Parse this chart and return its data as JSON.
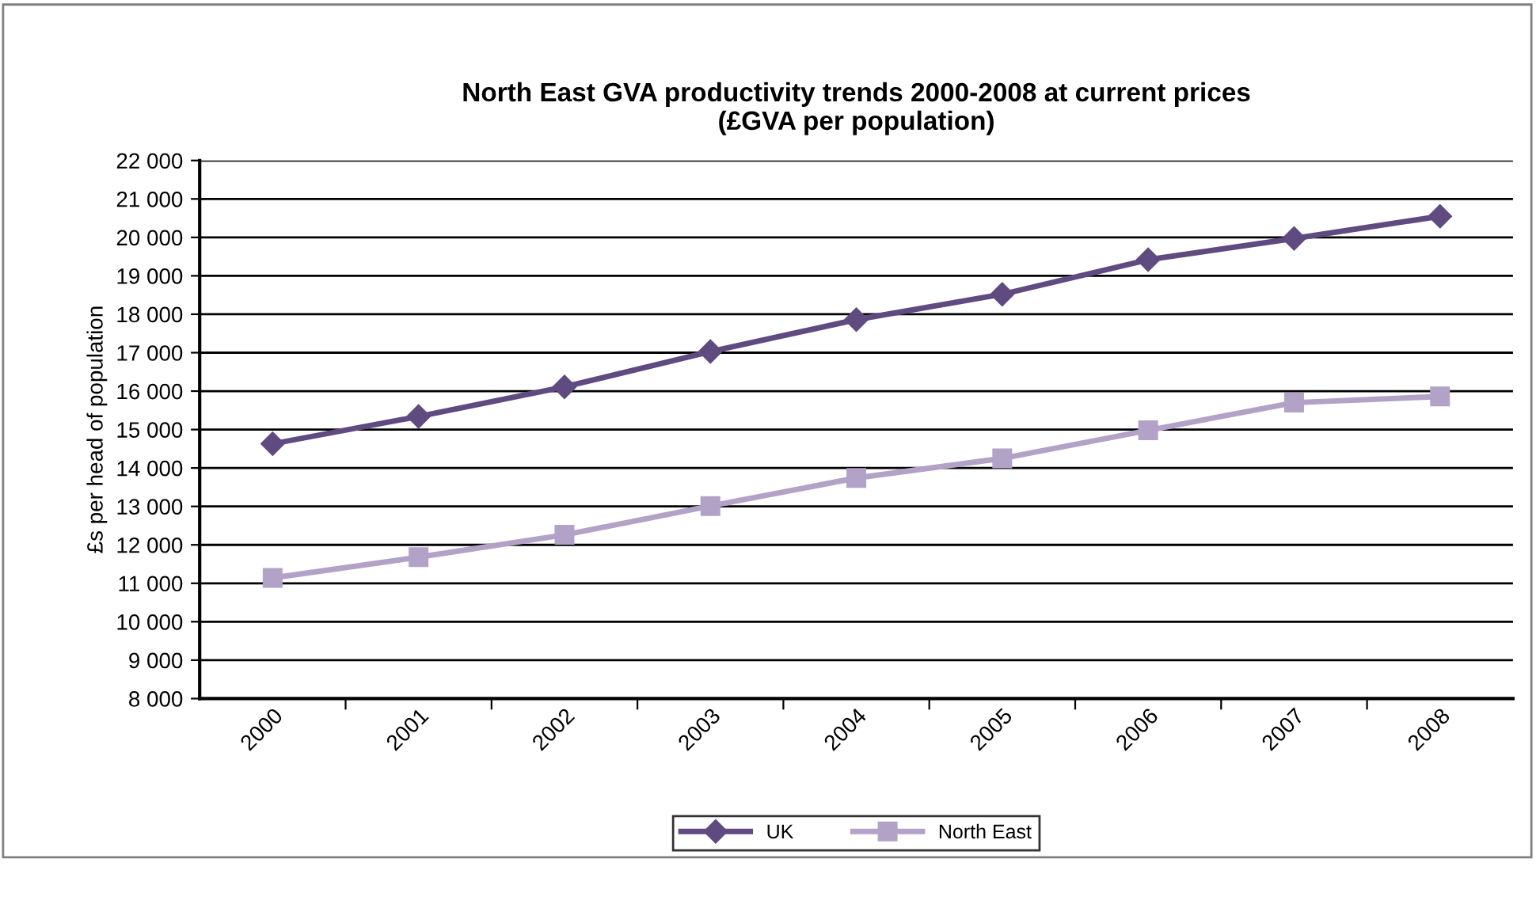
{
  "chart_data": {
    "type": "line",
    "title": "North East GVA productivity trends 2000-2008 at current prices\n(£GVA per population)",
    "ylabel": "£s per head of population",
    "categories": [
      "2000",
      "2001",
      "2002",
      "2003",
      "2004",
      "2005",
      "2006",
      "2007",
      "2008"
    ],
    "series": [
      {
        "name": "UK",
        "color": "#5f4b7f",
        "marker": "diamond",
        "values": [
          14630,
          15340,
          16110,
          17030,
          17860,
          18520,
          19420,
          19970,
          20550
        ]
      },
      {
        "name": "North East",
        "color": "#b3a2c7",
        "marker": "square",
        "values": [
          11140,
          11680,
          12260,
          13010,
          13740,
          14250,
          14980,
          15700,
          15860
        ]
      }
    ],
    "ylim": [
      8000,
      22000
    ],
    "yticks": [
      {
        "value": 8000,
        "label": "8 000"
      },
      {
        "value": 9000,
        "label": "9 000"
      },
      {
        "value": 10000,
        "label": "10 000"
      },
      {
        "value": 11000,
        "label": "11 000"
      },
      {
        "value": 12000,
        "label": "12 000"
      },
      {
        "value": 13000,
        "label": "13 000"
      },
      {
        "value": 14000,
        "label": "14 000"
      },
      {
        "value": 15000,
        "label": "15 000"
      },
      {
        "value": 16000,
        "label": "16 000"
      },
      {
        "value": 17000,
        "label": "17 000"
      },
      {
        "value": 18000,
        "label": "18 000"
      },
      {
        "value": 19000,
        "label": "19 000"
      },
      {
        "value": 20000,
        "label": "20 000"
      },
      {
        "value": 21000,
        "label": "21 000"
      },
      {
        "value": 22000,
        "label": "22 000"
      }
    ],
    "grid": "y",
    "legend": "bottom"
  }
}
